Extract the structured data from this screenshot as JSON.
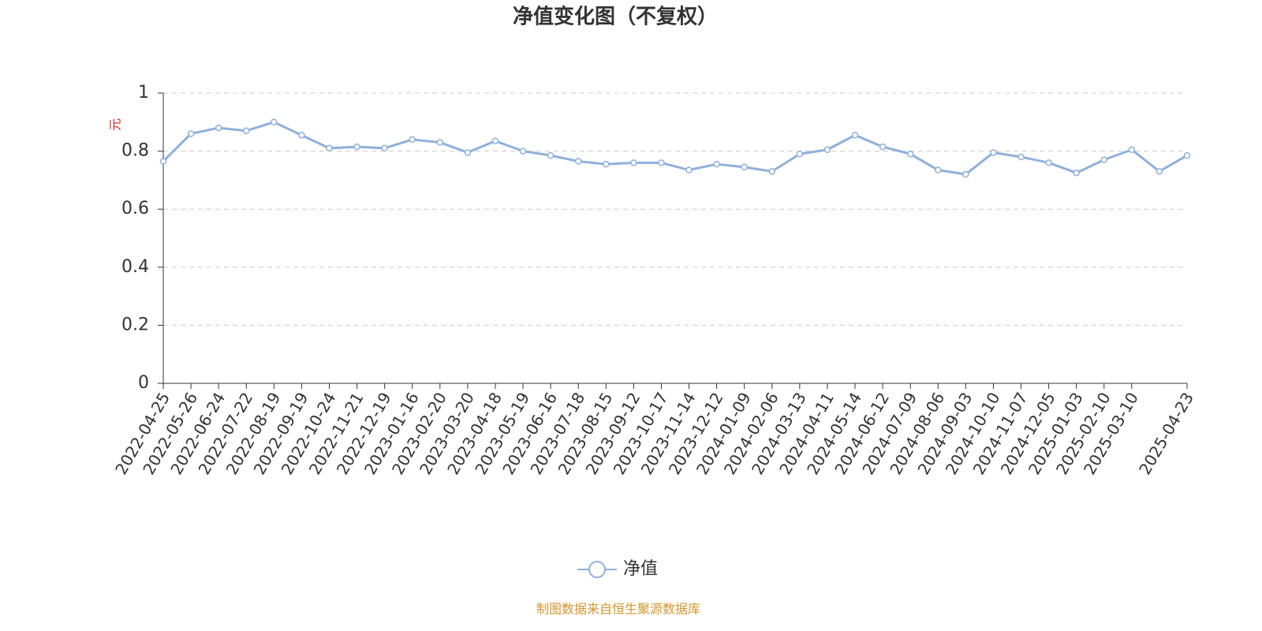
{
  "chart_data": {
    "type": "line",
    "title": "净值变化图（不复权）",
    "y_label": "元",
    "source": "制图数据来自恒生聚源数据库",
    "categories": [
      "2022-04-25",
      "2022-05-26",
      "2022-06-24",
      "2022-07-22",
      "2022-08-19",
      "2022-09-19",
      "2022-10-24",
      "2022-11-21",
      "2022-12-19",
      "2023-01-16",
      "2023-02-20",
      "2023-03-20",
      "2023-04-18",
      "2023-05-19",
      "2023-06-16",
      "2023-07-18",
      "2023-08-15",
      "2023-09-12",
      "2023-10-17",
      "2023-11-14",
      "2023-12-12",
      "2024-01-09",
      "2024-02-06",
      "2024-03-13",
      "2024-04-11",
      "2024-05-14",
      "2024-06-12",
      "2024-07-09",
      "2024-08-06",
      "2024-09-03",
      "2024-10-10",
      "2024-11-07",
      "2024-12-05",
      "2025-01-03",
      "2025-02-10",
      "2025-03-10",
      null,
      "2025-04-23"
    ],
    "series": [
      {
        "name": "净值",
        "color": "#8fb0dc",
        "values": [
          0.765,
          0.86,
          0.88,
          0.87,
          0.9,
          0.855,
          0.81,
          0.815,
          0.81,
          0.84,
          0.83,
          0.795,
          0.835,
          0.8,
          0.785,
          0.765,
          0.755,
          0.76,
          0.76,
          0.735,
          0.755,
          0.745,
          0.73,
          0.79,
          0.805,
          0.855,
          0.815,
          0.79,
          0.735,
          0.72,
          0.795,
          0.78,
          0.76,
          0.725,
          0.77,
          0.805,
          0.73,
          0.785
        ]
      }
    ],
    "ylim": [
      0,
      1
    ],
    "yticks": [
      0,
      0.2,
      0.4,
      0.6,
      0.8,
      1
    ],
    "grid": true
  }
}
